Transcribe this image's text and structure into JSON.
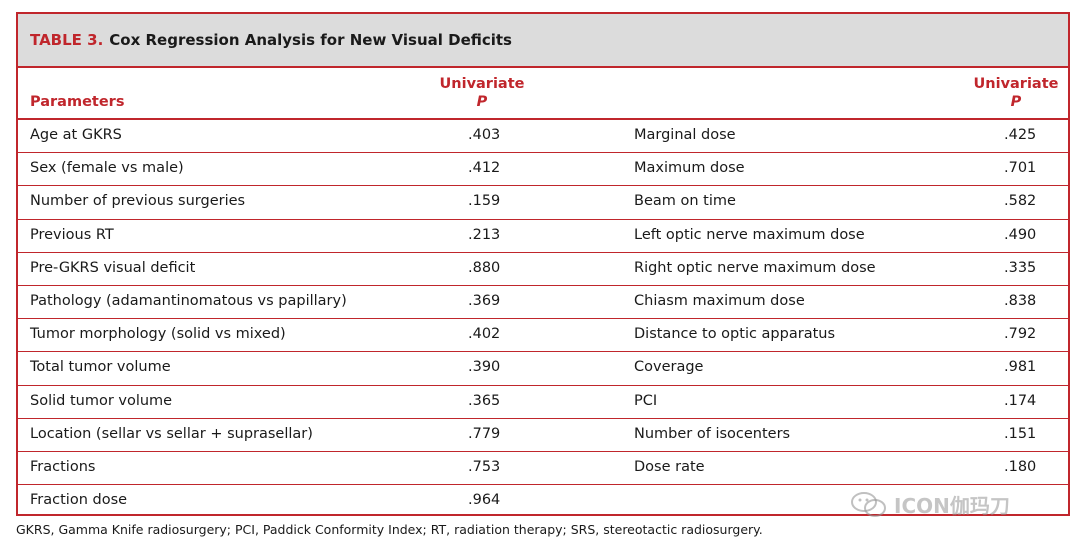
{
  "title": {
    "prefix": "TABLE 3.",
    "text": "Cox Regression Analysis for New Visual Deficits"
  },
  "headers": {
    "parameters": "Parameters",
    "univariate": "Univariate",
    "p": "P"
  },
  "rows": [
    {
      "param1": "Age at GKRS",
      "p1": ".403",
      "param2": "Marginal dose",
      "p2": ".425"
    },
    {
      "param1": "Sex (female vs male)",
      "p1": ".412",
      "param2": "Maximum dose",
      "p2": ".701"
    },
    {
      "param1": "Number of previous surgeries",
      "p1": ".159",
      "param2": "Beam on time",
      "p2": ".582"
    },
    {
      "param1": "Previous RT",
      "p1": ".213",
      "param2": "Left optic nerve maximum dose",
      "p2": ".490"
    },
    {
      "param1": "Pre-GKRS visual deficit",
      "p1": ".880",
      "param2": "Right optic nerve maximum dose",
      "p2": ".335"
    },
    {
      "param1": "Pathology (adamantinomatous vs papillary)",
      "p1": ".369",
      "param2": "Chiasm maximum dose",
      "p2": ".838"
    },
    {
      "param1": "Tumor morphology (solid vs mixed)",
      "p1": ".402",
      "param2": "Distance to optic apparatus",
      "p2": ".792"
    },
    {
      "param1": "Total tumor volume",
      "p1": ".390",
      "param2": "Coverage",
      "p2": ".981"
    },
    {
      "param1": "Solid tumor volume",
      "p1": ".365",
      "param2": "PCI",
      "p2": ".174"
    },
    {
      "param1": "Location (sellar vs sellar + suprasellar)",
      "p1": ".779",
      "param2": "Number of isocenters",
      "p2": ".151"
    },
    {
      "param1": "Fractions",
      "p1": ".753",
      "param2": "Dose rate",
      "p2": ".180"
    },
    {
      "param1": "Fraction dose",
      "p1": ".964",
      "param2": "",
      "p2": ""
    }
  ],
  "footnote": "GKRS, Gamma Knife radiosurgery; PCI, Paddick Conformity Index; RT, radiation therapy; SRS, stereotactic radiosurgery.",
  "watermark": {
    "text": "ICON伽玛刀",
    "icon": "wechat-icon"
  },
  "colors": {
    "accent": "#c0262c",
    "title_bg": "#dcdcdc"
  }
}
